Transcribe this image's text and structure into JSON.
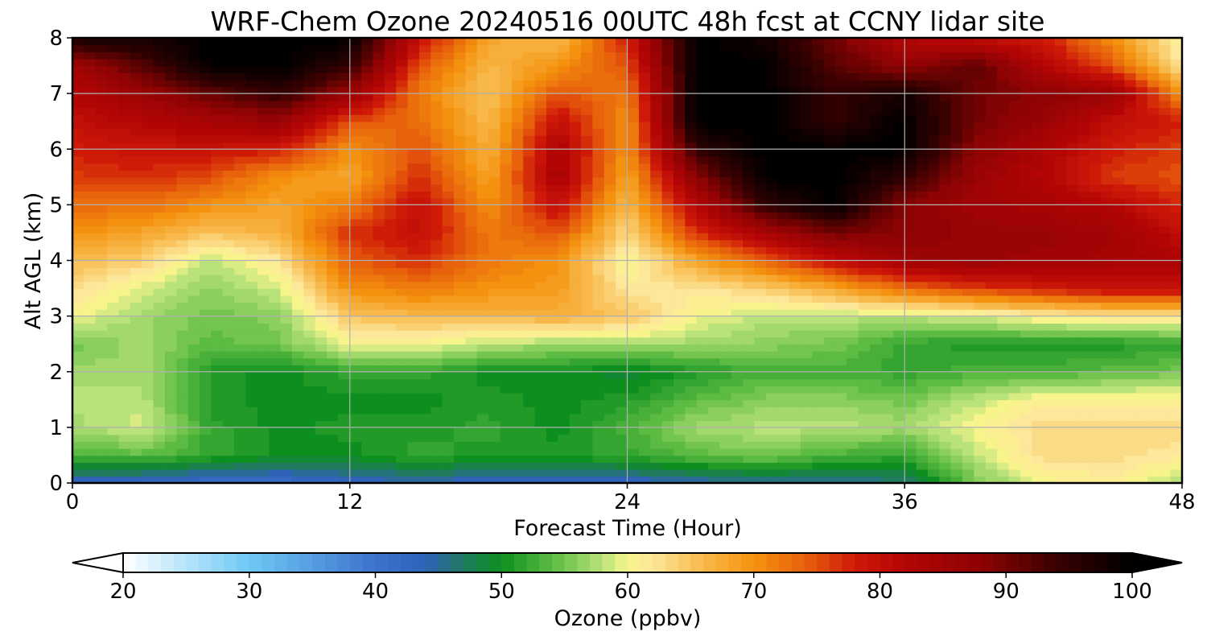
{
  "chart_data": {
    "type": "heatmap",
    "title": "WRF-Chem Ozone  20240516 00UTC 48h fcst at CCNY lidar site",
    "xlabel": "Forecast Time (Hour)",
    "ylabel": "Alt AGL (km)",
    "xlim": [
      0,
      48
    ],
    "ylim": [
      0,
      8
    ],
    "xticks": [
      0,
      12,
      24,
      36,
      48
    ],
    "yticks": [
      0,
      1,
      2,
      3,
      4,
      5,
      6,
      7,
      8
    ],
    "grid": true,
    "x_hours": [
      0,
      3,
      6,
      9,
      12,
      15,
      18,
      21,
      24,
      27,
      30,
      33,
      36,
      39,
      42,
      45,
      48
    ],
    "y_km": [
      0,
      0.5,
      1,
      1.5,
      2,
      2.5,
      3,
      3.5,
      4,
      4.5,
      5,
      5.5,
      6,
      6.5,
      7,
      7.5,
      8
    ],
    "ozone_ppbv": [
      [
        43,
        42,
        41,
        41,
        43,
        44,
        43,
        43,
        43,
        44,
        45,
        45,
        46,
        55,
        60,
        61,
        57
      ],
      [
        53,
        54,
        52,
        50,
        50,
        52,
        51,
        51,
        52,
        54,
        55,
        53,
        52,
        58,
        63,
        63,
        62
      ],
      [
        57,
        59,
        52,
        50,
        51,
        51,
        52,
        50,
        53,
        57,
        58,
        58,
        57,
        60,
        63,
        63,
        63
      ],
      [
        58,
        58,
        51,
        50,
        50,
        50,
        51,
        50,
        51,
        54,
        56,
        56,
        55,
        58,
        61,
        61,
        61
      ],
      [
        57,
        57,
        51,
        50,
        52,
        52,
        50,
        50,
        49,
        51,
        53,
        53,
        52,
        53,
        53,
        54,
        55
      ],
      [
        55,
        57,
        54,
        55,
        60,
        60,
        58,
        57,
        57,
        57,
        56,
        55,
        52,
        51,
        51,
        51,
        52
      ],
      [
        60,
        57,
        55,
        56,
        65,
        66,
        66,
        67,
        65,
        60,
        58,
        58,
        58,
        59,
        61,
        62,
        62
      ],
      [
        63,
        59,
        56,
        59,
        70,
        72,
        70,
        69,
        62,
        62,
        64,
        68,
        73,
        76,
        78,
        80,
        80
      ],
      [
        66,
        64,
        58,
        62,
        74,
        77,
        72,
        70,
        60,
        68,
        74,
        80,
        85,
        86,
        85,
        84,
        83
      ],
      [
        70,
        68,
        65,
        67,
        77,
        80,
        72,
        75,
        63,
        77,
        84,
        90,
        88,
        86,
        86,
        85,
        80
      ],
      [
        73,
        73,
        70,
        68,
        72,
        80,
        70,
        80,
        66,
        82,
        95,
        100,
        88,
        85,
        84,
        82,
        77
      ],
      [
        76,
        77,
        75,
        70,
        68,
        77,
        68,
        84,
        68,
        88,
        100,
        100,
        95,
        86,
        82,
        76,
        75
      ],
      [
        78,
        79,
        79,
        78,
        70,
        75,
        67,
        83,
        70,
        95,
        100,
        100,
        100,
        88,
        83,
        78,
        76
      ],
      [
        80,
        82,
        84,
        86,
        75,
        73,
        66,
        80,
        70,
        100,
        100,
        95,
        100,
        90,
        86,
        80,
        78
      ],
      [
        82,
        86,
        91,
        95,
        86,
        72,
        65,
        75,
        72,
        100,
        100,
        95,
        98,
        90,
        88,
        86,
        70
      ],
      [
        85,
        92,
        100,
        100,
        95,
        75,
        66,
        70,
        75,
        100,
        100,
        92,
        87,
        92,
        82,
        75,
        62
      ],
      [
        98,
        98,
        100,
        100,
        100,
        80,
        68,
        66,
        78,
        100,
        98,
        90,
        82,
        80,
        78,
        70,
        60
      ]
    ],
    "colorbar": {
      "label": "Ozone  (ppbv)",
      "min": 20,
      "max": 100,
      "ticks": [
        20,
        30,
        40,
        50,
        60,
        70,
        80,
        90,
        100
      ],
      "extend": "both",
      "levels": 81,
      "colormap": [
        [
          20,
          "#ffffff"
        ],
        [
          30,
          "#6ec8f5"
        ],
        [
          40,
          "#3c73cc"
        ],
        [
          44,
          "#2f62b8"
        ],
        [
          47,
          "#1f7a5e"
        ],
        [
          50,
          "#0d8f1f"
        ],
        [
          54,
          "#5cbb42"
        ],
        [
          58,
          "#b9e27a"
        ],
        [
          60,
          "#f8f48c"
        ],
        [
          62,
          "#fde79a"
        ],
        [
          66,
          "#f8b84a"
        ],
        [
          70,
          "#f4920f"
        ],
        [
          74,
          "#e8620c"
        ],
        [
          78,
          "#cf1a08"
        ],
        [
          82,
          "#b30505"
        ],
        [
          88,
          "#8e0303"
        ],
        [
          94,
          "#3b0101"
        ],
        [
          100,
          "#000000"
        ]
      ]
    }
  }
}
